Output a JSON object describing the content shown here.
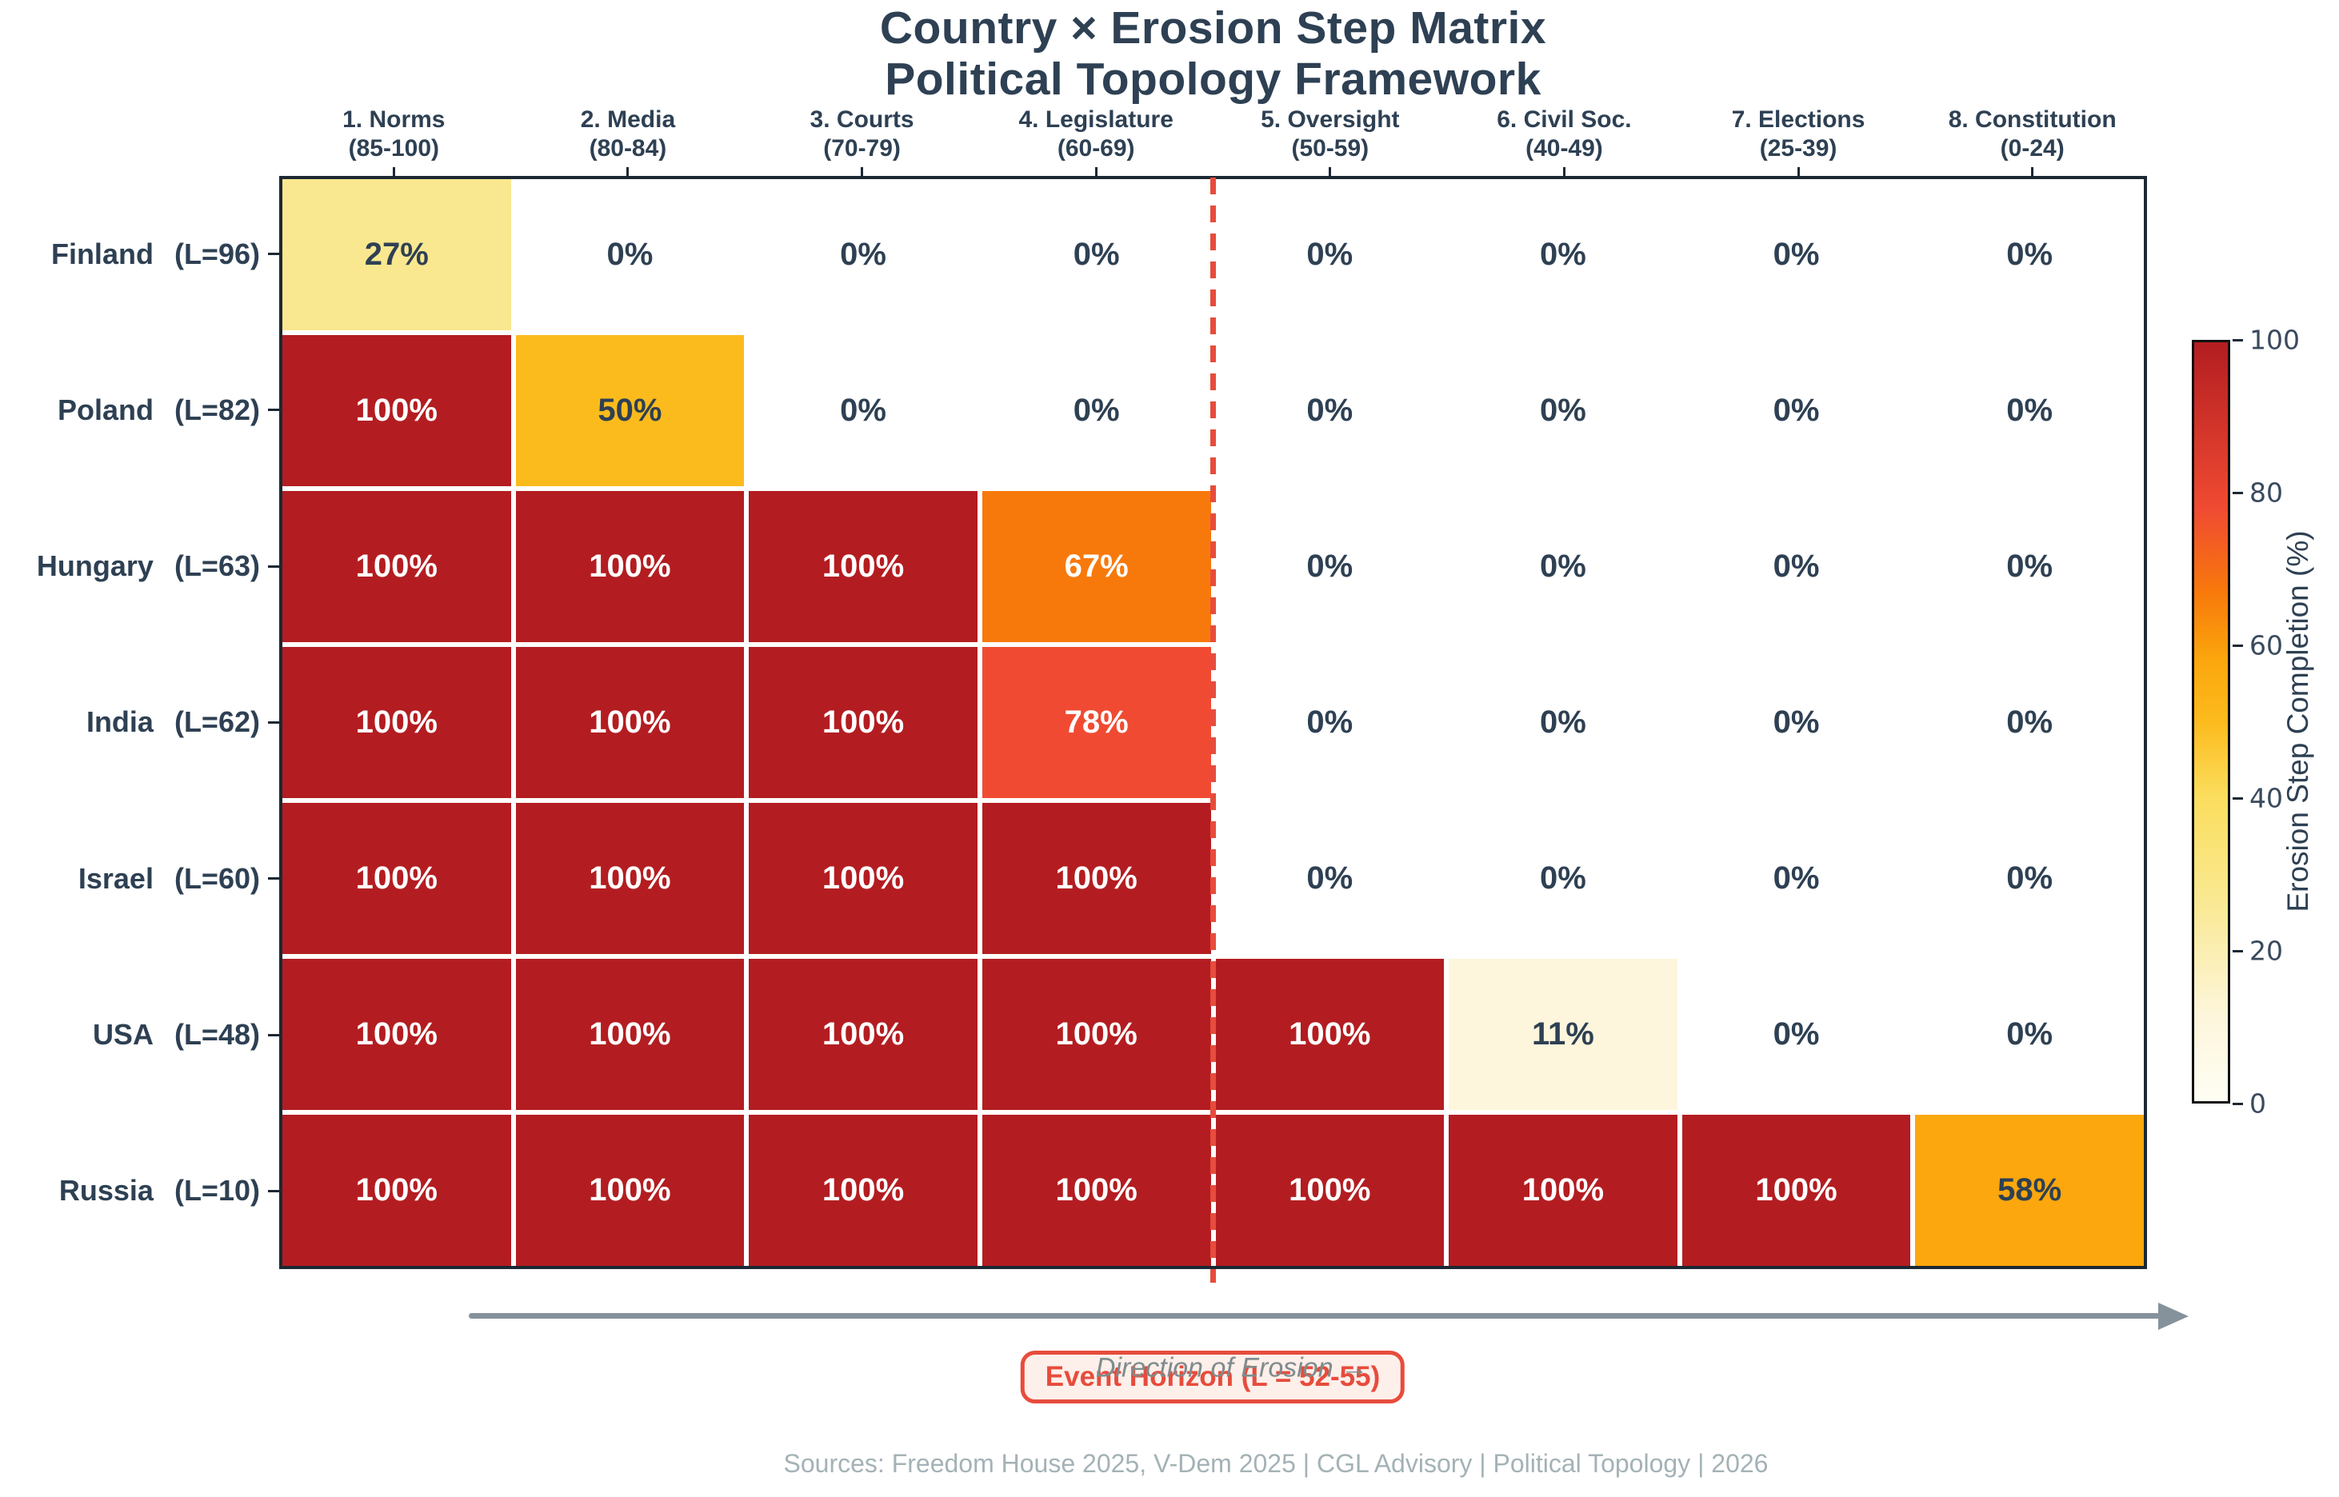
{
  "title": {
    "line1": "Country × Erosion Step Matrix",
    "line2": "Political Topology Framework"
  },
  "chart_data": {
    "type": "heatmap",
    "columns": [
      {
        "label": "1. Norms",
        "range": "(85-100)"
      },
      {
        "label": "2. Media",
        "range": "(80-84)"
      },
      {
        "label": "3. Courts",
        "range": "(70-79)"
      },
      {
        "label": "4. Legislature",
        "range": "(60-69)"
      },
      {
        "label": "5. Oversight",
        "range": "(50-59)"
      },
      {
        "label": "6. Civil Soc.",
        "range": "(40-49)"
      },
      {
        "label": "7. Elections",
        "range": "(25-39)"
      },
      {
        "label": "8. Constitution",
        "range": "(0-24)"
      }
    ],
    "rows": [
      {
        "country": "Finland",
        "liberty": "(L=96)"
      },
      {
        "country": "Poland",
        "liberty": "(L=82)"
      },
      {
        "country": "Hungary",
        "liberty": "(L=63)"
      },
      {
        "country": "India",
        "liberty": "(L=62)"
      },
      {
        "country": "Israel",
        "liberty": "(L=60)"
      },
      {
        "country": "USA",
        "liberty": "(L=48)"
      },
      {
        "country": "Russia",
        "liberty": "(L=10)"
      }
    ],
    "values": [
      [
        27,
        0,
        0,
        0,
        0,
        0,
        0,
        0
      ],
      [
        100,
        50,
        0,
        0,
        0,
        0,
        0,
        0
      ],
      [
        100,
        100,
        100,
        67,
        0,
        0,
        0,
        0
      ],
      [
        100,
        100,
        100,
        78,
        0,
        0,
        0,
        0
      ],
      [
        100,
        100,
        100,
        100,
        0,
        0,
        0,
        0
      ],
      [
        100,
        100,
        100,
        100,
        100,
        11,
        0,
        0
      ],
      [
        100,
        100,
        100,
        100,
        100,
        100,
        100,
        58
      ]
    ],
    "value_suffix": "%",
    "colorbar": {
      "label": "Erosion Step Completion (%)",
      "min": 0,
      "max": 100,
      "ticks": [
        0,
        20,
        40,
        60,
        80,
        100
      ]
    },
    "color_scale": [
      [
        0,
        "#FFFEF4"
      ],
      [
        11,
        "#FDF6DC"
      ],
      [
        27,
        "#F9E88F"
      ],
      [
        40,
        "#FBDE5E"
      ],
      [
        50,
        "#FCBB1D"
      ],
      [
        58,
        "#FBA70D"
      ],
      [
        67,
        "#F8790B"
      ],
      [
        78,
        "#F04B32"
      ],
      [
        100,
        "#B31D21"
      ]
    ],
    "text_colors": {
      "dark": "#2E4053",
      "light": "#FFFFFF",
      "light_threshold": 65
    },
    "event_horizon": {
      "label": "Event Horizon (L = 52-55)",
      "after_column_index": 4,
      "color": "#E74C3C"
    },
    "direction_label": "Direction of Erosion →"
  },
  "footer": {
    "sources": "Sources: Freedom House 2025, V-Dem 2025  |  CGL Advisory | Political Topology | 2026"
  },
  "colors": {
    "text_slate": "#2E4053",
    "cell_max_red": "#B71D22",
    "event_horizon_red": "#E74C3C",
    "arrow_gray": "#85929B",
    "footer_gray": "#A4B2B6"
  }
}
